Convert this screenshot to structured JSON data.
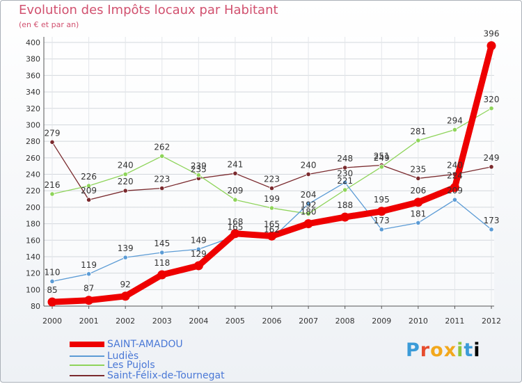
{
  "header": {
    "title": "Evolution des Impôts locaux par Habitant",
    "subtitle": "(en € et par an)"
  },
  "logo": {
    "letters": [
      "P",
      "r",
      "o",
      "x",
      "i",
      "t",
      "i"
    ]
  },
  "chart_data": {
    "type": "line",
    "x": [
      2000,
      2001,
      2002,
      2003,
      2004,
      2005,
      2006,
      2007,
      2008,
      2009,
      2010,
      2011,
      2012
    ],
    "ylim": [
      80,
      400
    ],
    "yticks": [
      80,
      100,
      120,
      140,
      160,
      180,
      200,
      220,
      240,
      260,
      280,
      300,
      320,
      340,
      360,
      380,
      400
    ],
    "grid": true,
    "legend_position": "bottom-left",
    "series": [
      {
        "name": "SAINT-AMADOU",
        "color": "#ee0000",
        "values": [
          85,
          87,
          92,
          118,
          129,
          168,
          165,
          180,
          188,
          195,
          206,
          224,
          396
        ],
        "labels": [
          "85",
          "87",
          "92",
          "118",
          "129",
          "168",
          "165",
          "180",
          "188",
          "195",
          "206",
          "224",
          "396"
        ]
      },
      {
        "name": "Ludiès",
        "color": "#5b9bd5",
        "values": [
          110,
          119,
          139,
          145,
          149,
          165,
          162,
          204,
          230,
          173,
          181,
          209,
          173
        ],
        "labels": [
          "110",
          "119",
          "139",
          "145",
          "149",
          "165",
          "162",
          "204",
          "230",
          "173",
          "181",
          "209",
          "173"
        ]
      },
      {
        "name": "Les Pujols",
        "color": "#8ed45a",
        "values": [
          216,
          226,
          240,
          262,
          239,
          209,
          199,
          192,
          221,
          249,
          281,
          294,
          320
        ],
        "labels": [
          "216",
          "226",
          "240",
          "262",
          "239",
          "209",
          "199",
          "192",
          "221",
          "249",
          "281",
          "294",
          "320"
        ]
      },
      {
        "name": "Saint-Félix-de-Tournegat",
        "color": "#7a2a2e",
        "values": [
          279,
          209,
          220,
          223,
          235,
          241,
          223,
          240,
          248,
          251,
          235,
          240,
          249
        ],
        "labels": [
          "279",
          "209",
          "220",
          "223",
          "235",
          "241",
          "223",
          "240",
          "248",
          "251",
          "235",
          "240",
          "249"
        ]
      }
    ]
  }
}
